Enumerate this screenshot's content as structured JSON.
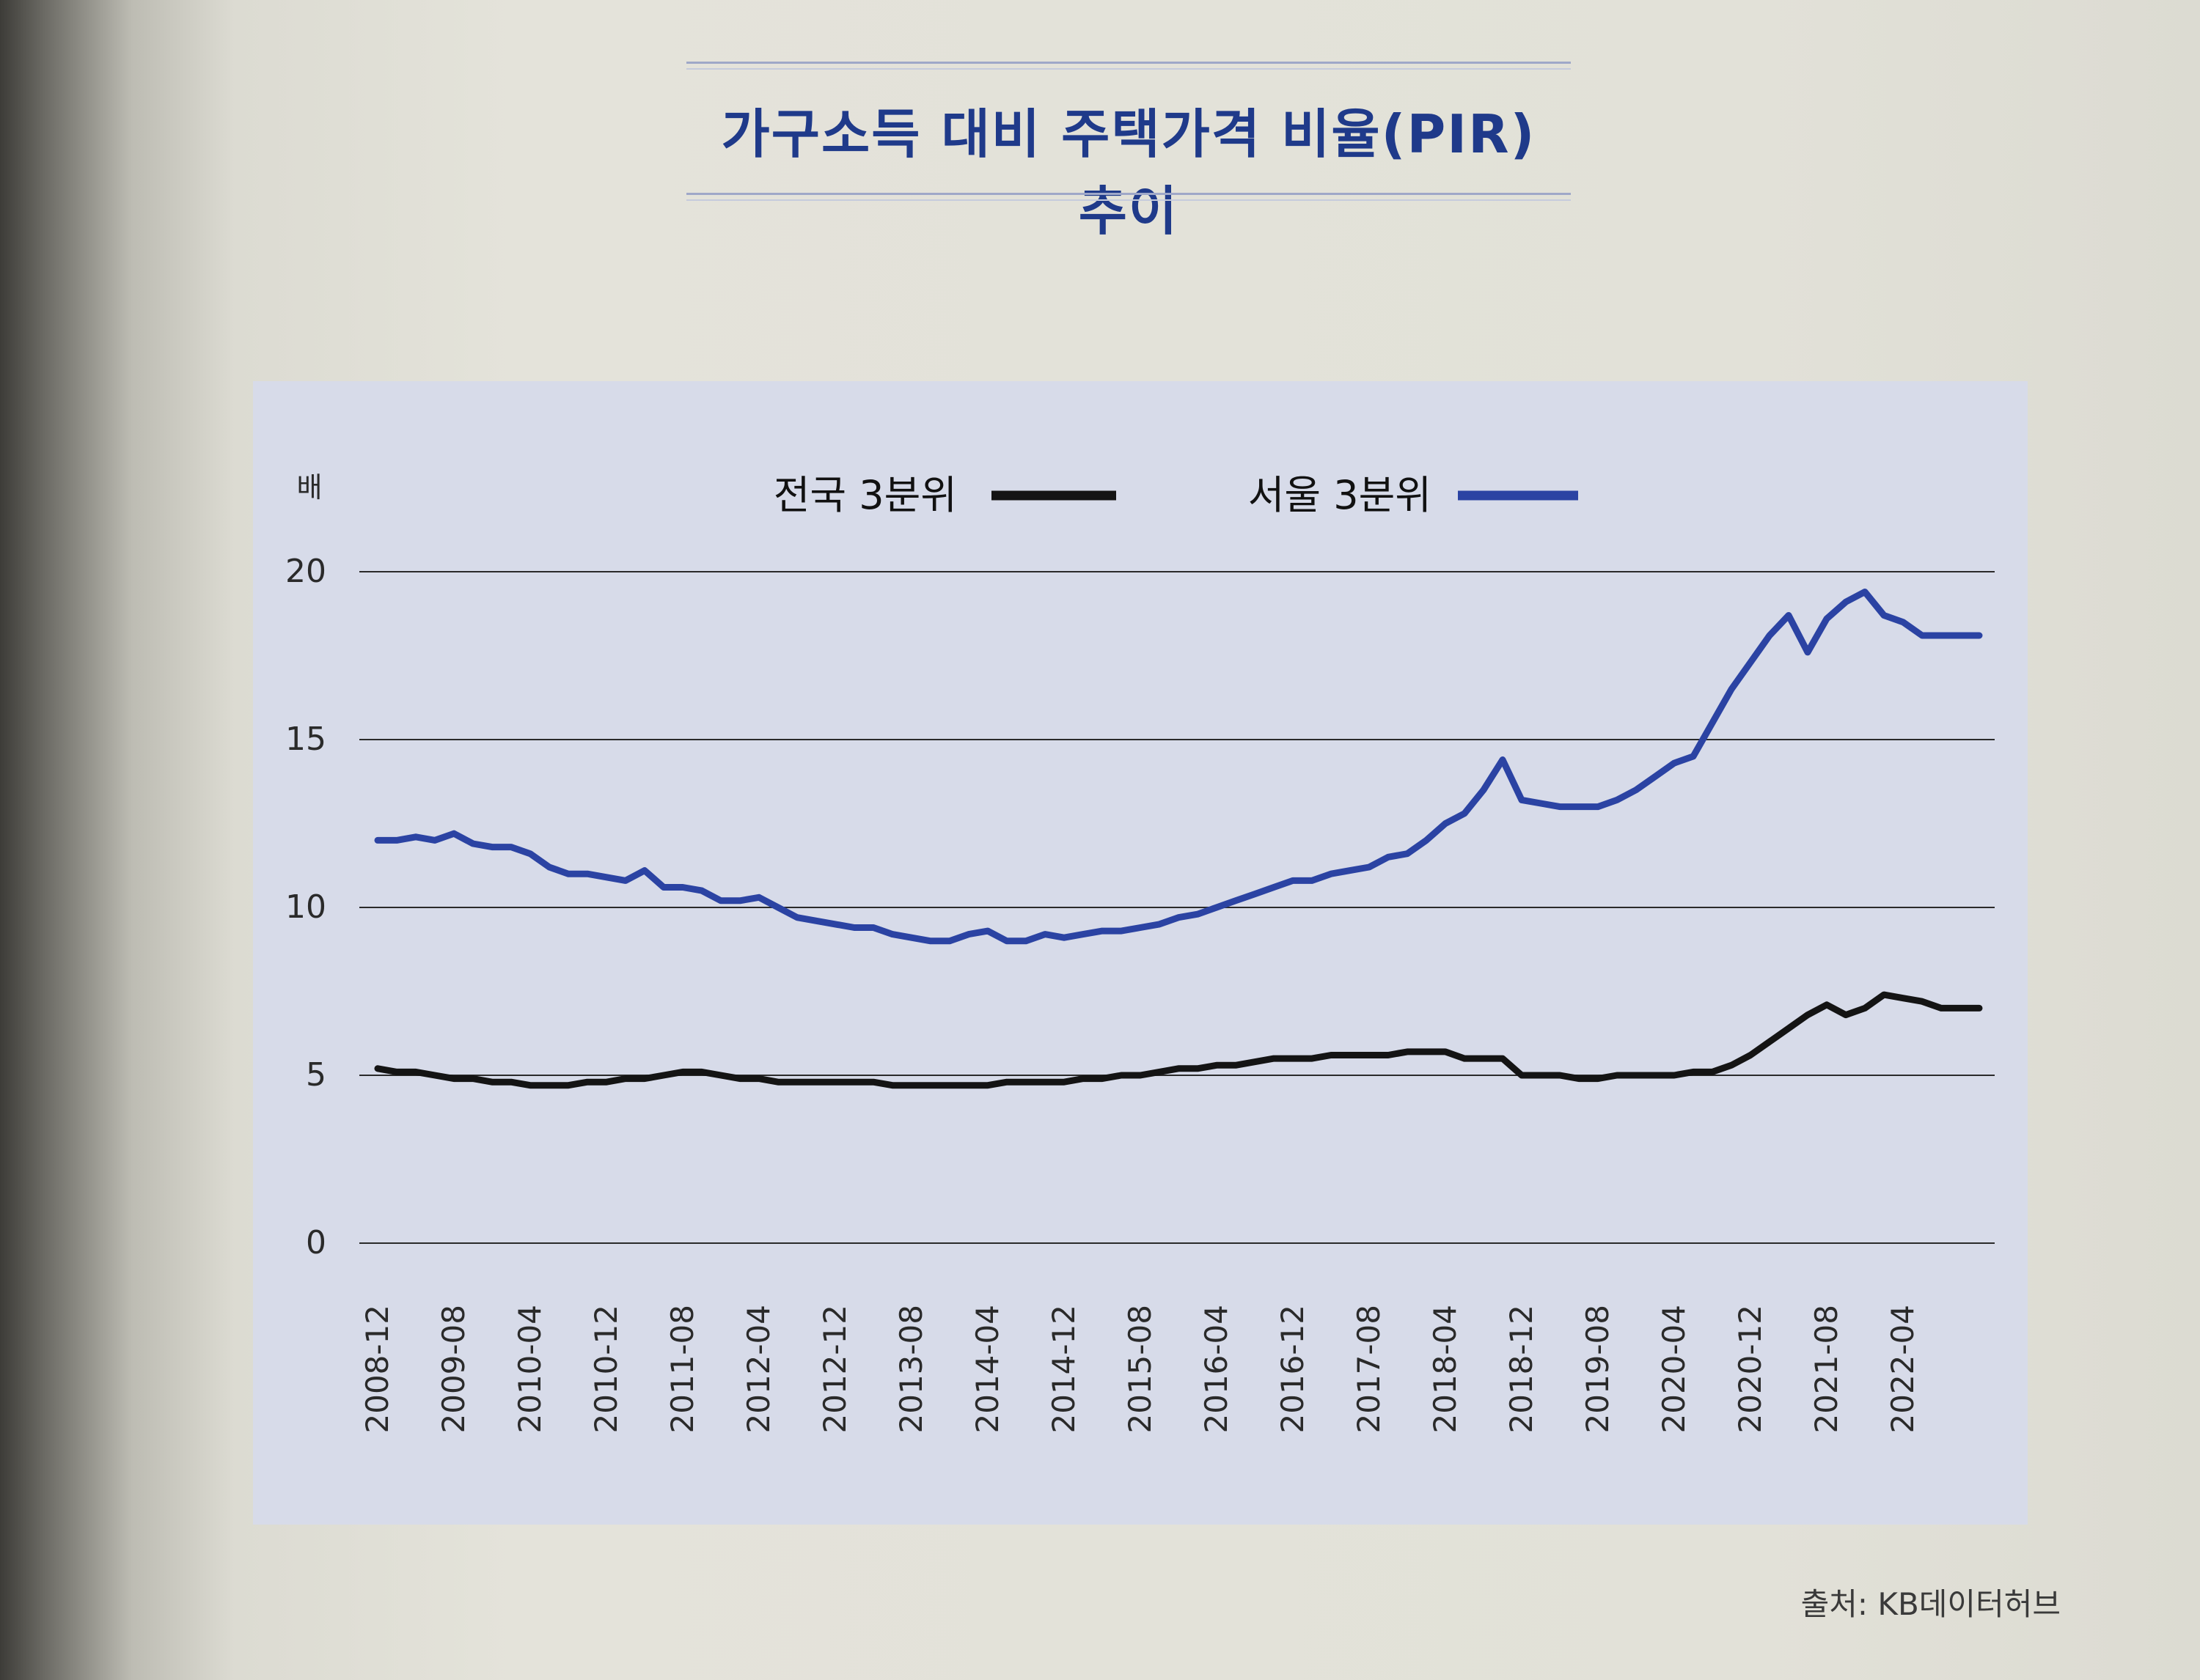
{
  "title": "가구소득 대비 주택가격 비율(PIR) 추이",
  "source": "출처: KB데이터허브",
  "colors": {
    "national": "#141414",
    "seoul": "#2b43a3",
    "grid": "#2a2a2a",
    "panel": "#d7dbe9"
  },
  "chart_data": {
    "type": "line",
    "title": "가구소득 대비 주택가격 비율(PIR) 추이",
    "ylabel": "배",
    "ylim": [
      0,
      20
    ],
    "yticks": [
      0,
      5,
      10,
      15,
      20
    ],
    "xlim": [
      0,
      170
    ],
    "x_tick_labels": [
      "2008-12",
      "2009-08",
      "2010-04",
      "2010-12",
      "2011-08",
      "2012-04",
      "2012-12",
      "2013-08",
      "2014-04",
      "2014-12",
      "2015-08",
      "2016-04",
      "2016-12",
      "2017-08",
      "2018-04",
      "2018-12",
      "2019-08",
      "2020-04",
      "2020-12",
      "2021-08",
      "2022-04"
    ],
    "x_tick_positions": [
      0,
      8,
      16,
      24,
      32,
      40,
      48,
      56,
      64,
      72,
      80,
      88,
      96,
      104,
      112,
      120,
      128,
      136,
      144,
      152,
      160
    ],
    "x_unit": "months since 2008-12",
    "legend": {
      "position": "top-center"
    },
    "series": [
      {
        "name": "전국 3분위",
        "color": "#141414",
        "x": [
          0,
          2,
          4,
          6,
          8,
          10,
          12,
          14,
          16,
          18,
          20,
          22,
          24,
          26,
          28,
          30,
          32,
          34,
          36,
          38,
          40,
          42,
          44,
          46,
          48,
          50,
          52,
          54,
          56,
          58,
          60,
          62,
          64,
          66,
          68,
          70,
          72,
          74,
          76,
          78,
          80,
          82,
          84,
          86,
          88,
          90,
          92,
          94,
          96,
          98,
          100,
          102,
          104,
          106,
          108,
          110,
          112,
          114,
          116,
          118,
          120,
          122,
          124,
          126,
          128,
          130,
          132,
          134,
          136,
          138,
          140,
          142,
          144,
          146,
          148,
          150,
          152,
          154,
          156,
          158,
          160,
          162,
          164,
          166,
          168
        ],
        "values": [
          5.2,
          5.1,
          5.1,
          5.0,
          4.9,
          4.9,
          4.8,
          4.8,
          4.7,
          4.7,
          4.7,
          4.8,
          4.8,
          4.9,
          4.9,
          5.0,
          5.1,
          5.1,
          5.0,
          4.9,
          4.9,
          4.8,
          4.8,
          4.8,
          4.8,
          4.8,
          4.8,
          4.7,
          4.7,
          4.7,
          4.7,
          4.7,
          4.7,
          4.8,
          4.8,
          4.8,
          4.8,
          4.9,
          4.9,
          5.0,
          5.0,
          5.1,
          5.2,
          5.2,
          5.3,
          5.3,
          5.4,
          5.5,
          5.5,
          5.5,
          5.6,
          5.6,
          5.6,
          5.6,
          5.7,
          5.7,
          5.7,
          5.5,
          5.5,
          5.5,
          5.0,
          5.0,
          5.0,
          4.9,
          4.9,
          5.0,
          5.0,
          5.0,
          5.0,
          5.1,
          5.1,
          5.3,
          5.6,
          6.0,
          6.4,
          6.8,
          7.1,
          6.8,
          7.0,
          7.4,
          7.3,
          7.2,
          7.0,
          7.0,
          7.0
        ]
      },
      {
        "name": "서울 3분위",
        "color": "#2b43a3",
        "x": [
          0,
          2,
          4,
          6,
          8,
          10,
          12,
          14,
          16,
          18,
          20,
          22,
          24,
          26,
          28,
          30,
          32,
          34,
          36,
          38,
          40,
          42,
          44,
          46,
          48,
          50,
          52,
          54,
          56,
          58,
          60,
          62,
          64,
          66,
          68,
          70,
          72,
          74,
          76,
          78,
          80,
          82,
          84,
          86,
          88,
          90,
          92,
          94,
          96,
          98,
          100,
          102,
          104,
          106,
          108,
          110,
          112,
          114,
          116,
          118,
          120,
          122,
          124,
          126,
          128,
          130,
          132,
          134,
          136,
          138,
          140,
          142,
          144,
          146,
          148,
          150,
          152,
          154,
          156,
          158,
          160,
          162,
          164,
          166,
          168
        ],
        "values": [
          12.0,
          12.0,
          12.1,
          12.0,
          12.2,
          11.9,
          11.8,
          11.8,
          11.6,
          11.2,
          11.0,
          11.0,
          10.9,
          10.8,
          11.1,
          10.6,
          10.6,
          10.5,
          10.2,
          10.2,
          10.3,
          10.0,
          9.7,
          9.6,
          9.5,
          9.4,
          9.4,
          9.2,
          9.1,
          9.0,
          9.0,
          9.2,
          9.3,
          9.0,
          9.0,
          9.2,
          9.1,
          9.2,
          9.3,
          9.3,
          9.4,
          9.5,
          9.7,
          9.8,
          10.0,
          10.2,
          10.4,
          10.6,
          10.8,
          10.8,
          11.0,
          11.1,
          11.2,
          11.5,
          11.6,
          12.0,
          12.5,
          12.8,
          13.5,
          14.4,
          13.2,
          13.1,
          13.0,
          13.0,
          13.0,
          13.2,
          13.5,
          13.9,
          14.3,
          14.5,
          15.5,
          16.5,
          17.3,
          18.1,
          18.7,
          17.6,
          18.6,
          19.1,
          19.4,
          18.7,
          18.5,
          18.1,
          18.1,
          18.1,
          18.1
        ]
      }
    ]
  }
}
